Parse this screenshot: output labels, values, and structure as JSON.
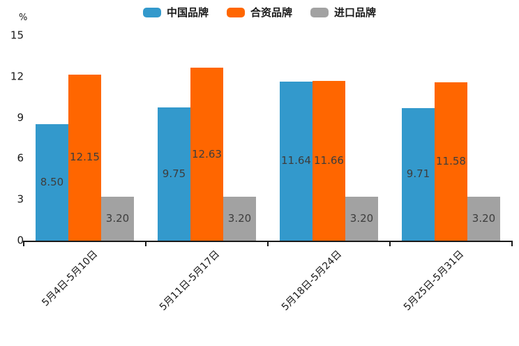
{
  "chart_data": {
    "type": "bar",
    "title": "",
    "unit_label": "%",
    "legend_position": "top",
    "grid": false,
    "ylim": [
      0,
      15
    ],
    "y_ticks": [
      0,
      3,
      6,
      9,
      12,
      15
    ],
    "categories": [
      "5月4日-5月10日",
      "5月11日-5月17日",
      "5月18日-5月24日",
      "5月25日-5月31日"
    ],
    "series": [
      {
        "name": "中国品牌",
        "color": "#3399cc",
        "values": [
          8.5,
          9.75,
          11.64,
          9.71
        ]
      },
      {
        "name": "合资品牌",
        "color": "#ff6600",
        "values": [
          12.15,
          12.63,
          11.66,
          11.58
        ]
      },
      {
        "name": "进口品牌",
        "color": "#a2a2a2",
        "values": [
          3.2,
          3.2,
          3.2,
          3.2
        ]
      }
    ],
    "value_labels_decimals": 2,
    "colors": {
      "axis": "#1a1a1a",
      "value_text": "#3d3d3d",
      "legend_text": "#1a1a1a",
      "background": "#ffffff"
    }
  }
}
